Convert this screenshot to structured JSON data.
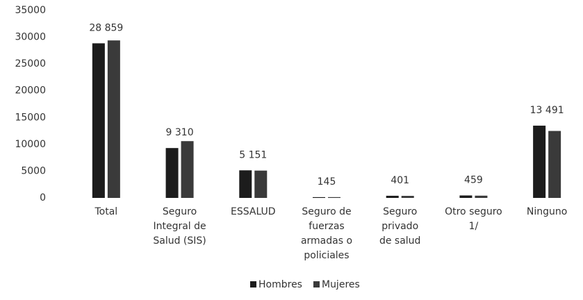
{
  "chart_data": {
    "type": "bar",
    "categories": [
      "Total",
      "Seguro\nIntegral de\nSalud (SIS)",
      "ESSALUD",
      "Seguro de\nfuerzas\narmadas o\npoliciales",
      "Seguro\nprivado\nde salud",
      "Otro seguro\n1/",
      "Ninguno"
    ],
    "series": [
      {
        "name": "Hombres",
        "color": "#1c1c1c",
        "values": [
          28859,
          9310,
          5151,
          145,
          401,
          459,
          13491
        ],
        "value_labels": [
          "28 859",
          "9 310",
          "5 151",
          "145",
          "401",
          "459",
          "13 491"
        ]
      },
      {
        "name": "Mujeres",
        "color": "#3a3a3a",
        "values": [
          29400,
          10600,
          5100,
          150,
          380,
          420,
          12500
        ]
      }
    ],
    "ylim": [
      0,
      35000
    ],
    "yticks": [
      0,
      5000,
      10000,
      15000,
      20000,
      25000,
      30000,
      35000
    ],
    "grid": false,
    "legend": "bottom"
  }
}
